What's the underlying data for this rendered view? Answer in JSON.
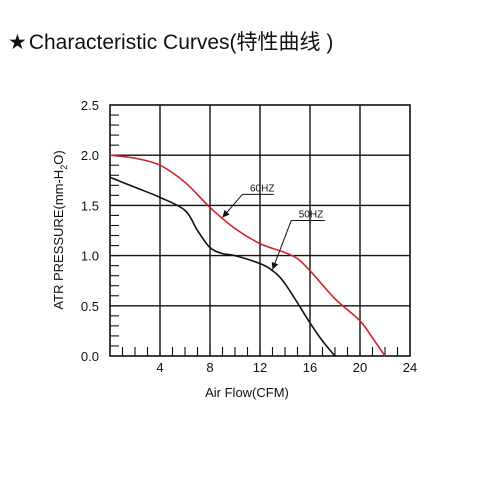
{
  "title": {
    "star": "★",
    "text": "Characteristic Curves(特性曲线 )"
  },
  "chart_data": {
    "type": "line",
    "xlabel": "Air Flow(CFM)",
    "ylabel": "ATR PRESSURE(mm-H2O)",
    "xlim": [
      0,
      24
    ],
    "ylim": [
      0,
      2.5
    ],
    "x_ticks": [
      4,
      8,
      12,
      16,
      20,
      24
    ],
    "x_tick_labels": [
      "4",
      "8",
      "12",
      "16",
      "20",
      "24"
    ],
    "y_ticks": [
      0,
      0.5,
      1.0,
      1.5,
      2.0,
      2.5
    ],
    "y_tick_labels": [
      "0.0",
      "0.5",
      "1.0",
      "1.5",
      "2.0",
      "2.5"
    ],
    "grid": true,
    "series": [
      {
        "name": "60HZ",
        "color": "#d42027",
        "x": [
          0,
          2,
          4,
          6,
          8,
          10,
          12,
          14,
          15,
          16,
          18,
          20,
          21,
          22
        ],
        "y": [
          2.0,
          1.97,
          1.9,
          1.73,
          1.48,
          1.27,
          1.12,
          1.03,
          0.97,
          0.85,
          0.57,
          0.35,
          0.18,
          0.0
        ]
      },
      {
        "name": "50HZ",
        "color": "#111111",
        "x": [
          0,
          2,
          4,
          6,
          7,
          8,
          9,
          10,
          12,
          13,
          14,
          16,
          17,
          18
        ],
        "y": [
          1.78,
          1.68,
          1.58,
          1.45,
          1.25,
          1.08,
          1.02,
          1.0,
          0.92,
          0.85,
          0.72,
          0.33,
          0.15,
          0.0
        ]
      }
    ]
  }
}
